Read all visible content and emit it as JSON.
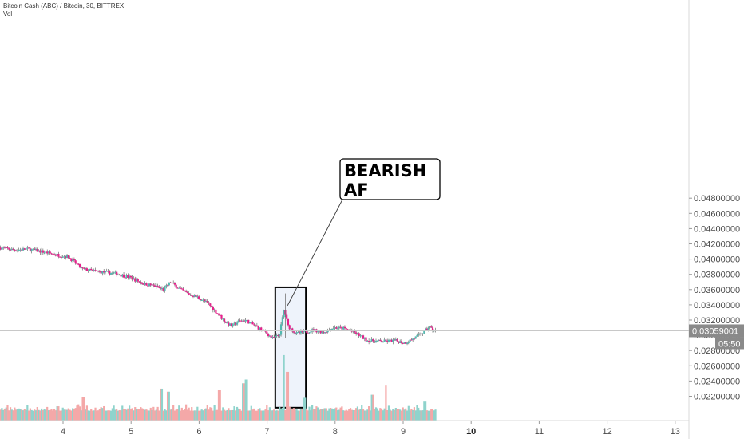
{
  "chart_data": {
    "type": "candlestick",
    "title": "Bitcoin Cash (ABC) / Bitcoin, 30, BITTREX",
    "volume_label": "Vol",
    "x_ticks": [
      "4",
      "5",
      "6",
      "7",
      "8",
      "9",
      "10",
      "11",
      "12",
      "13"
    ],
    "bold_x_ticks": [
      "10"
    ],
    "y_ticks": [
      "0.02200000",
      "0.02400000",
      "0.02600000",
      "0.02800000",
      "0.03000000",
      "0.03200000",
      "0.03400000",
      "0.03600000",
      "0.03800000",
      "0.04000000",
      "0.04200000",
      "0.04400000",
      "0.04600000",
      "0.04800000"
    ],
    "ylim": [
      0.0201,
      0.0495
    ],
    "xlim": [
      3.08,
      13.2
    ],
    "data_end_x": 9.48,
    "current_price": "0.03059001",
    "countdown": "05:50",
    "price_path": [
      [
        3.08,
        0.0415
      ],
      [
        3.3,
        0.0412
      ],
      [
        3.5,
        0.0413
      ],
      [
        3.7,
        0.041
      ],
      [
        3.9,
        0.0406
      ],
      [
        4.1,
        0.0403
      ],
      [
        4.3,
        0.0387
      ],
      [
        4.5,
        0.0384
      ],
      [
        4.8,
        0.0381
      ],
      [
        5.0,
        0.0376
      ],
      [
        5.2,
        0.0368
      ],
      [
        5.35,
        0.0365
      ],
      [
        5.5,
        0.036
      ],
      [
        5.6,
        0.037
      ],
      [
        5.75,
        0.036
      ],
      [
        5.85,
        0.0355
      ],
      [
        6.0,
        0.035
      ],
      [
        6.15,
        0.0342
      ],
      [
        6.3,
        0.0328
      ],
      [
        6.4,
        0.0318
      ],
      [
        6.5,
        0.0312
      ],
      [
        6.6,
        0.0318
      ],
      [
        6.7,
        0.032
      ],
      [
        6.85,
        0.0312
      ],
      [
        7.0,
        0.0304
      ],
      [
        7.1,
        0.0296
      ],
      [
        7.2,
        0.03
      ],
      [
        7.27,
        0.0334
      ],
      [
        7.33,
        0.0312
      ],
      [
        7.45,
        0.0302
      ],
      [
        7.55,
        0.0304
      ],
      [
        7.7,
        0.0307
      ],
      [
        7.85,
        0.0304
      ],
      [
        8.0,
        0.031
      ],
      [
        8.15,
        0.0309
      ],
      [
        8.3,
        0.0304
      ],
      [
        8.5,
        0.0293
      ],
      [
        8.7,
        0.0292
      ],
      [
        8.9,
        0.0293
      ],
      [
        9.05,
        0.029
      ],
      [
        9.2,
        0.0297
      ],
      [
        9.32,
        0.0304
      ],
      [
        9.4,
        0.0311
      ],
      [
        9.48,
        0.0306
      ]
    ],
    "volume_spikes": [
      [
        4.3,
        0.0219
      ],
      [
        5.45,
        0.023
      ],
      [
        5.55,
        0.0226
      ],
      [
        6.3,
        0.0228
      ],
      [
        6.65,
        0.0237
      ],
      [
        6.7,
        0.0242
      ],
      [
        7.25,
        0.0274
      ],
      [
        7.3,
        0.0252
      ],
      [
        7.55,
        0.0218
      ],
      [
        8.55,
        0.0222
      ],
      [
        8.75,
        0.0235
      ],
      [
        9.32,
        0.0213
      ]
    ],
    "annotation": {
      "text_lines": [
        "BEARISH",
        "AF"
      ]
    },
    "highlight_box": {
      "x_range": [
        7.12,
        7.57
      ],
      "y_range": [
        0.0205,
        0.0363
      ]
    },
    "colors": {
      "up": "#53b9b0",
      "down": "#e91e8c",
      "vol_up": "#8fd3cc",
      "vol_down": "#f4a8a8",
      "price_line": "#c8c8c8",
      "tag_bg": "#8a8a8a",
      "box_fill": "#eef3fb",
      "box_border": "#000000"
    }
  }
}
